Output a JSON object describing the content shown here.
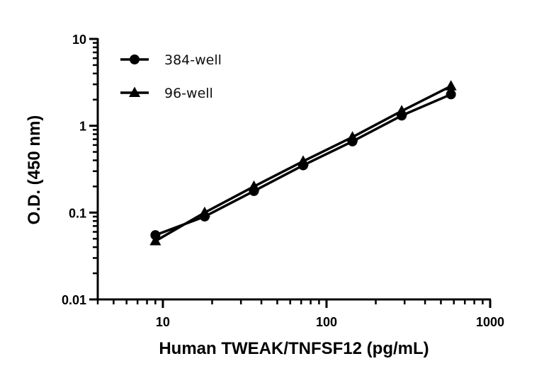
{
  "chart_data": {
    "type": "line",
    "title": "",
    "xlabel": "Human TWEAK/TNFSF12 (pg/mL)",
    "ylabel": "O.D. (450 nm)",
    "xscale": "log",
    "yscale": "log",
    "xlim": [
      4,
      1000
    ],
    "ylim": [
      0.01,
      10
    ],
    "xticks": [
      10,
      100,
      1000
    ],
    "xtick_labels": [
      "10",
      "100",
      "1000"
    ],
    "yticks": [
      0.01,
      0.1,
      1,
      10
    ],
    "ytick_labels": [
      "0.01",
      "0.1",
      "1",
      "10"
    ],
    "grid": false,
    "legend_position": "top-left",
    "x": [
      9,
      18,
      36,
      72,
      144,
      288,
      576
    ],
    "series": [
      {
        "name": "384-well",
        "marker": "circle",
        "color": "#000000",
        "values": [
          0.055,
          0.09,
          0.177,
          0.35,
          0.66,
          1.31,
          2.3
        ]
      },
      {
        "name": "96-well",
        "marker": "triangle",
        "color": "#000000",
        "values": [
          0.047,
          0.1,
          0.2,
          0.39,
          0.74,
          1.48,
          2.86
        ]
      }
    ]
  }
}
